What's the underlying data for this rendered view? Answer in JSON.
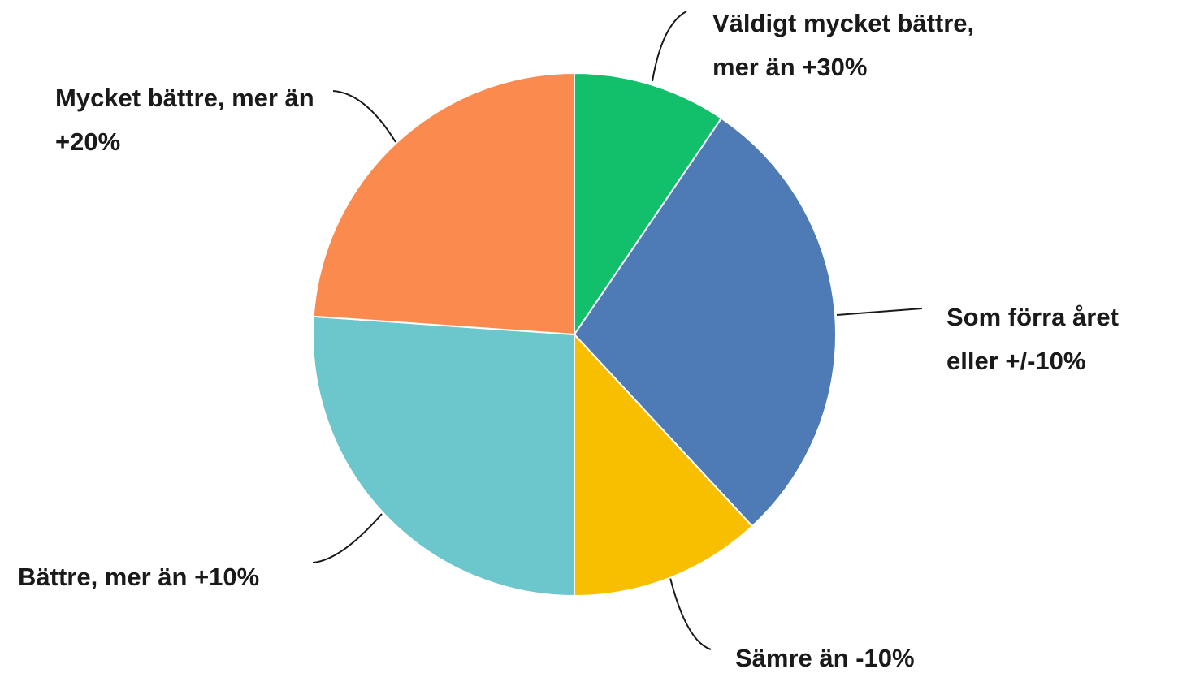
{
  "chart_data": {
    "type": "pie",
    "categories": [
      "Väldigt mycket bättre, mer än +30%",
      "Som förra året eller +/-10%",
      "Sämre än -10%",
      "Bättre, mer än +10%",
      "Mycket bättre, mer än +20%"
    ],
    "values": [
      9.5,
      28.6,
      11.9,
      26.1,
      23.9
    ],
    "colors": [
      "#12bf6b",
      "#4e7ab5",
      "#f7bf00",
      "#6cc7cc",
      "#fb8a4e"
    ]
  }
}
